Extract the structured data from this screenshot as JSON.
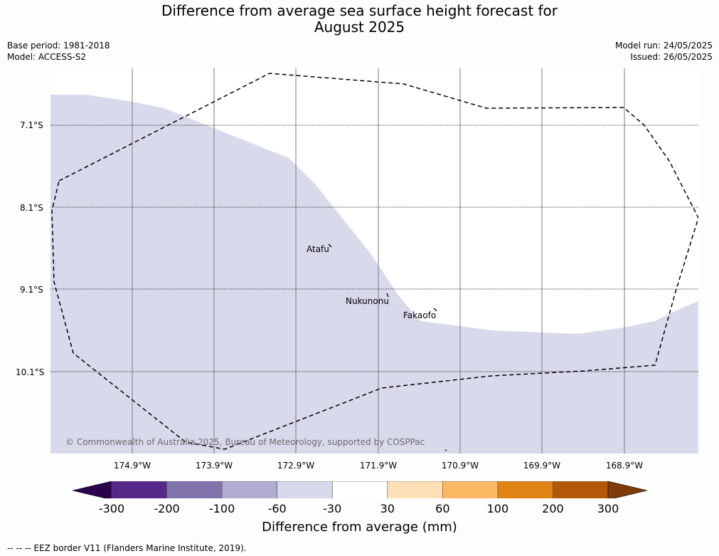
{
  "title_line1": "Difference from average sea surface height forecast for",
  "title_line2": "August 2025",
  "meta_left": [
    "Base period: 1981-2018",
    "Model: ACCESS-S2"
  ],
  "meta_right": [
    "Model run: 24/05/2025",
    "Issued: 26/05/2025"
  ],
  "lat_labels": [
    "7.1°S",
    "8.1°S",
    "9.1°S",
    "10.1°S"
  ],
  "lon_labels": [
    "174.9°W",
    "173.9°W",
    "172.9°W",
    "171.9°W",
    "170.9°W",
    "169.9°W",
    "168.9°W"
  ],
  "islands": [
    "Atafu",
    "Nukunonu",
    "Fakaofo"
  ],
  "copyright": "© Commonwealth of Australia 2025, Bureau of Meteorology, supported by COSPPac",
  "colorbar": {
    "title": "Difference from average (mm)",
    "ticks": [
      "-300",
      "-200",
      "-100",
      "-60",
      "-30",
      "30",
      "60",
      "100",
      "200",
      "300"
    ],
    "colors": [
      "#2d004b",
      "#542788",
      "#8073ac",
      "#b2abd2",
      "#d8daeb",
      "#ffffff",
      "#fee0b6",
      "#fdb863",
      "#e08214",
      "#b35806",
      "#7f3b08"
    ]
  },
  "map_fill_color": "#d8daeb",
  "footer": "-- -- -- EEZ border V11 (Flanders Marine Institute, 2019)."
}
